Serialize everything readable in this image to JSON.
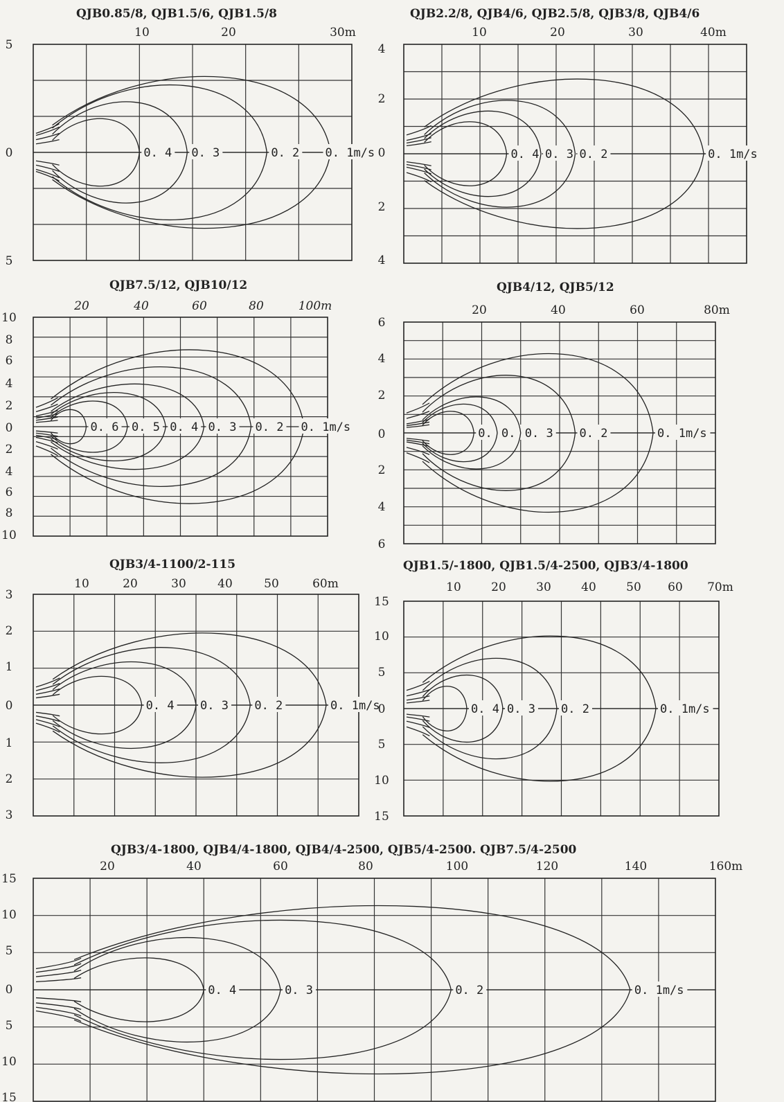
{
  "colors": {
    "paper": "#f4f3ef",
    "ink": "#222222"
  },
  "chart_data": [
    {
      "type": "line",
      "title": "QJB0.85/8, QJB1.5/6, QJB1.5/8",
      "x_ticks": [
        "10",
        "20",
        "30m"
      ],
      "y_ticks": [
        "5",
        "0",
        "5"
      ],
      "xlim": [
        0,
        30
      ],
      "ylim": [
        -5,
        5
      ],
      "series": [
        {
          "name": "0.4",
          "x": 10,
          "y": 2.0
        },
        {
          "name": "0.3",
          "x": 14.5,
          "y": 3.0
        },
        {
          "name": "0.2",
          "x": 22,
          "y": 4.0
        },
        {
          "name": "0.1m/s",
          "x": 28,
          "y": 4.5
        }
      ]
    },
    {
      "type": "line",
      "title": "QJB2.2/8, QJB4/6, QJB2.5/8, QJB3/8, QJB4/6",
      "x_ticks": [
        "10",
        "20",
        "30",
        "40m"
      ],
      "y_ticks": [
        "4",
        "2",
        "0",
        "2",
        "4"
      ],
      "xlim": [
        0,
        40
      ],
      "ylim": [
        -4,
        4
      ],
      "series": [
        {
          "name": "0.4",
          "x": 12,
          "y": 1.5
        },
        {
          "name": "0.3",
          "x": 16,
          "y": 2.0
        },
        {
          "name": "0.2",
          "x": 20,
          "y": 2.5
        },
        {
          "name": "0.1m/s",
          "x": 35,
          "y": 3.5
        }
      ]
    },
    {
      "type": "line",
      "title": "QJB7.5/12, QJB10/12",
      "x_ticks": [
        "20",
        "40",
        "60",
        "80",
        "100m"
      ],
      "y_ticks": [
        "10",
        "8",
        "6",
        "4",
        "2",
        "0",
        "2",
        "4",
        "6",
        "8",
        "10"
      ],
      "xlim": [
        0,
        100
      ],
      "ylim": [
        -10,
        10
      ],
      "series": [
        {
          "name": "0.6",
          "x": 18,
          "y": 2.0
        },
        {
          "name": "0.5",
          "x": 32,
          "y": 3.0
        },
        {
          "name": "0.4",
          "x": 45,
          "y": 4.0
        },
        {
          "name": "0.3",
          "x": 58,
          "y": 5.0
        },
        {
          "name": "0.2",
          "x": 74,
          "y": 7.0
        },
        {
          "name": "0.1m/s",
          "x": 92,
          "y": 9.0
        }
      ]
    },
    {
      "type": "line",
      "title": "QJB4/12, QJB5/12",
      "x_ticks": [
        "20",
        "40",
        "60",
        "80m"
      ],
      "y_ticks": [
        "6",
        "4",
        "2",
        "0",
        "2",
        "4",
        "6"
      ],
      "xlim": [
        0,
        80
      ],
      "ylim": [
        -6,
        6
      ],
      "series": [
        {
          "name": "0.5",
          "x": 18,
          "y": 1.5
        },
        {
          "name": "0.4",
          "x": 24,
          "y": 2.0
        },
        {
          "name": "0.3",
          "x": 30,
          "y": 2.5
        },
        {
          "name": "0.2",
          "x": 44,
          "y": 4.0
        },
        {
          "name": "0.1m/s",
          "x": 64,
          "y": 5.5
        }
      ]
    },
    {
      "type": "line",
      "title": "QJB3/4-1100/2-115",
      "x_ticks": [
        "10",
        "20",
        "30",
        "40",
        "50",
        "60m"
      ],
      "y_ticks": [
        "3",
        "2",
        "1",
        "0",
        "1",
        "2",
        "3"
      ],
      "xlim": [
        0,
        60
      ],
      "ylim": [
        -3,
        3
      ],
      "series": [
        {
          "name": "0.4",
          "x": 20,
          "y": 1.0
        },
        {
          "name": "0.3",
          "x": 30,
          "y": 1.5
        },
        {
          "name": "0.2",
          "x": 40,
          "y": 2.0
        },
        {
          "name": "0.1m/s",
          "x": 54,
          "y": 2.5
        }
      ]
    },
    {
      "type": "line",
      "title": "QJB1.5/-1800, QJB1.5/4-2500, QJB3/4-1800",
      "x_ticks": [
        "10",
        "20",
        "30",
        "40",
        "50",
        "60",
        "70m"
      ],
      "y_ticks": [
        "15",
        "10",
        "5",
        "0",
        "5",
        "10",
        "15"
      ],
      "xlim": [
        0,
        70
      ],
      "ylim": [
        -15,
        15
      ],
      "series": [
        {
          "name": "0.4",
          "x": 14,
          "y": 4.0
        },
        {
          "name": "0.3",
          "x": 22,
          "y": 6.0
        },
        {
          "name": "0.2",
          "x": 34,
          "y": 9.0
        },
        {
          "name": "0.1m/s",
          "x": 56,
          "y": 13.0
        }
      ]
    },
    {
      "type": "line",
      "title": "QJB3/4-1800, QJB4/4-1800, QJB4/4-2500, QJB5/4-2500. QJB7.5/4-2500",
      "x_ticks": [
        "20",
        "40",
        "60",
        "80",
        "100",
        "120",
        "140",
        "160m"
      ],
      "y_ticks": [
        "15",
        "10",
        "5",
        "0",
        "5",
        "10",
        "15"
      ],
      "xlim": [
        0,
        160
      ],
      "ylim": [
        -15,
        15
      ],
      "series": [
        {
          "name": "0.4",
          "x": 40,
          "y": 5.5
        },
        {
          "name": "0.3",
          "x": 58,
          "y": 9.0
        },
        {
          "name": "0.2",
          "x": 98,
          "y": 12.0
        },
        {
          "name": "0.1m/s",
          "x": 140,
          "y": 14.5
        }
      ]
    }
  ]
}
